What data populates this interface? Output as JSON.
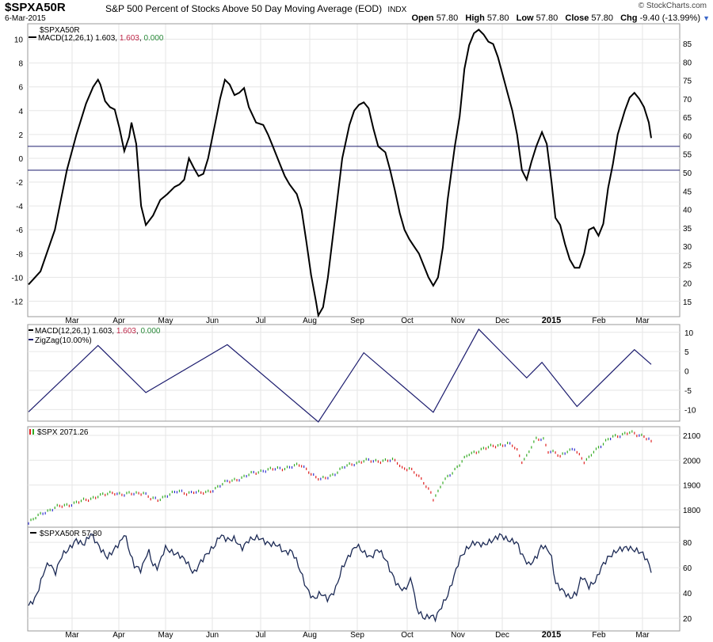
{
  "header": {
    "symbol": "$SPXA50R",
    "name": "S&P 500 Percent of Stocks Above 50 Day Moving Average (EOD)",
    "exchange": "INDX",
    "date": "6-Mar-2015",
    "brand": "© StockCharts.com",
    "open_label": "Open",
    "open": "57.80",
    "high_label": "High",
    "high": "57.80",
    "low_label": "Low",
    "low": "57.80",
    "close_label": "Close",
    "close": "57.80",
    "chg_label": "Chg",
    "chg": "-9.40 (-13.99%)",
    "menu_icon": "dropdown-triangle-icon"
  },
  "x_axis": {
    "labels": [
      "Mar",
      "Apr",
      "May",
      "Jun",
      "Jul",
      "Aug",
      "Sep",
      "Oct",
      "Nov",
      "Dec",
      "2015",
      "Feb",
      "Mar"
    ],
    "bold": [
      "2015"
    ]
  },
  "chart_data": [
    {
      "id": "main",
      "type": "line",
      "legend": [
        "$SPXA50R",
        "MACD(12,26,1) 1.603, 1.603, 0.000"
      ],
      "legend_colors": [
        "#000000",
        "#000000"
      ],
      "macd_values": [
        "1.603",
        "1.603",
        "0.000"
      ],
      "macd_value_colors": [
        "#000000",
        "#c0284a",
        "#2a8a3a"
      ],
      "left_axis": {
        "ticks": [
          10,
          8,
          6,
          4,
          2,
          0,
          -2,
          -4,
          -6,
          -8,
          -10,
          -12
        ],
        "min": -13.3,
        "max": 11.3
      },
      "right_axis": {
        "ticks": [
          85,
          80,
          75,
          70,
          65,
          60,
          55,
          50,
          45,
          40,
          35,
          30,
          25,
          20,
          15
        ]
      },
      "hlines": [
        1,
        -1
      ],
      "hline_color": "#1c1c6e",
      "series_color": "#000000",
      "points": [
        [
          0,
          -10.6
        ],
        [
          0.25,
          -9.5
        ],
        [
          0.55,
          -6
        ],
        [
          0.8,
          -1
        ],
        [
          1,
          2
        ],
        [
          1.2,
          4.6
        ],
        [
          1.35,
          6
        ],
        [
          1.45,
          6.6
        ],
        [
          1.5,
          6.2
        ],
        [
          1.6,
          4.8
        ],
        [
          1.7,
          4.3
        ],
        [
          1.8,
          4.1
        ],
        [
          1.9,
          2.5
        ],
        [
          2,
          0.6
        ],
        [
          2.1,
          1.8
        ],
        [
          2.15,
          3
        ],
        [
          2.25,
          1.2
        ],
        [
          2.35,
          -4
        ],
        [
          2.45,
          -5.6
        ],
        [
          2.6,
          -4.8
        ],
        [
          2.75,
          -3.5
        ],
        [
          2.9,
          -3
        ],
        [
          3.05,
          -2.4
        ],
        [
          3.15,
          -2.2
        ],
        [
          3.25,
          -1.8
        ],
        [
          3.35,
          0
        ],
        [
          3.45,
          -0.8
        ],
        [
          3.55,
          -1.5
        ],
        [
          3.65,
          -1.3
        ],
        [
          3.75,
          0
        ],
        [
          3.9,
          3
        ],
        [
          4,
          5
        ],
        [
          4.1,
          6.6
        ],
        [
          4.2,
          6.2
        ],
        [
          4.3,
          5.3
        ],
        [
          4.4,
          5.5
        ],
        [
          4.5,
          5.9
        ],
        [
          4.6,
          4.3
        ],
        [
          4.75,
          3
        ],
        [
          4.9,
          2.8
        ],
        [
          5,
          2
        ],
        [
          5.1,
          1
        ],
        [
          5.25,
          -0.5
        ],
        [
          5.35,
          -1.5
        ],
        [
          5.45,
          -2.2
        ],
        [
          5.6,
          -3
        ],
        [
          5.7,
          -4.3
        ],
        [
          5.8,
          -7
        ],
        [
          5.9,
          -9.8
        ],
        [
          6,
          -12
        ],
        [
          6.05,
          -13.2
        ],
        [
          6.15,
          -12.5
        ],
        [
          6.25,
          -10
        ],
        [
          6.4,
          -5
        ],
        [
          6.55,
          0
        ],
        [
          6.7,
          2.8
        ],
        [
          6.8,
          4
        ],
        [
          6.9,
          4.5
        ],
        [
          7,
          4.7
        ],
        [
          7.1,
          4.2
        ],
        [
          7.2,
          2.5
        ],
        [
          7.3,
          1
        ],
        [
          7.45,
          0.5
        ],
        [
          7.55,
          -1
        ],
        [
          7.65,
          -2.7
        ],
        [
          7.75,
          -4.6
        ],
        [
          7.85,
          -6
        ],
        [
          7.95,
          -6.8
        ],
        [
          8.05,
          -7.4
        ],
        [
          8.15,
          -8
        ],
        [
          8.25,
          -9
        ],
        [
          8.35,
          -10
        ],
        [
          8.45,
          -10.7
        ],
        [
          8.55,
          -10
        ],
        [
          8.65,
          -7.5
        ],
        [
          8.75,
          -3.5
        ],
        [
          8.9,
          1
        ],
        [
          9,
          3.5
        ],
        [
          9.1,
          7.5
        ],
        [
          9.2,
          9.5
        ],
        [
          9.3,
          10.5
        ],
        [
          9.4,
          10.8
        ],
        [
          9.5,
          10.4
        ],
        [
          9.6,
          9.8
        ],
        [
          9.7,
          9.6
        ],
        [
          9.8,
          8.5
        ],
        [
          9.9,
          7
        ],
        [
          10,
          5.5
        ],
        [
          10.1,
          4
        ],
        [
          10.2,
          2
        ],
        [
          10.3,
          -1
        ],
        [
          10.4,
          -1.8
        ],
        [
          10.5,
          -0.3
        ],
        [
          10.6,
          1
        ],
        [
          10.72,
          2.2
        ],
        [
          10.82,
          1.2
        ],
        [
          10.92,
          -2
        ],
        [
          11,
          -5
        ],
        [
          11.1,
          -5.6
        ],
        [
          11.2,
          -7.2
        ],
        [
          11.3,
          -8.5
        ],
        [
          11.4,
          -9.2
        ],
        [
          11.5,
          -9.2
        ],
        [
          11.6,
          -8
        ],
        [
          11.7,
          -6
        ],
        [
          11.8,
          -5.8
        ],
        [
          11.9,
          -6.5
        ],
        [
          12,
          -5.5
        ],
        [
          12.1,
          -2.5
        ],
        [
          12.2,
          -0.5
        ],
        [
          12.3,
          2
        ],
        [
          12.45,
          4
        ],
        [
          12.55,
          5.1
        ],
        [
          12.65,
          5.5
        ],
        [
          12.75,
          5
        ],
        [
          12.85,
          4.3
        ],
        [
          12.95,
          3
        ],
        [
          13,
          1.7
        ]
      ]
    },
    {
      "id": "macd",
      "type": "line",
      "legend": [
        "MACD(12,26,1) 1.603, 1.603, 0.000",
        "ZigZag(10.00%)"
      ],
      "macd_values": [
        "1.603",
        "1.603",
        "0.000"
      ],
      "macd_value_colors": [
        "#000000",
        "#c0284a",
        "#2a8a3a"
      ],
      "series_color": "#1c1c6e",
      "right_axis": {
        "ticks": [
          10,
          5,
          0,
          -5,
          -10
        ],
        "min": -13,
        "max": 12
      },
      "points": [
        [
          0,
          -10.6
        ],
        [
          1.45,
          6.6
        ],
        [
          2.45,
          -5.6
        ],
        [
          4.15,
          6.8
        ],
        [
          6.05,
          -13.2
        ],
        [
          7,
          4.7
        ],
        [
          8.45,
          -10.7
        ],
        [
          9.4,
          10.8
        ],
        [
          10.4,
          -1.8
        ],
        [
          10.72,
          2.2
        ],
        [
          11.45,
          -9.2
        ],
        [
          12.65,
          5.5
        ],
        [
          13,
          1.7
        ]
      ]
    },
    {
      "id": "spx",
      "type": "bar",
      "legend": [
        "$SPX 2071.26"
      ],
      "right_axis": {
        "ticks": [
          2100,
          2000,
          1900,
          1800
        ],
        "min": 1730,
        "max": 2135
      },
      "colors": {
        "up": "#33aa22",
        "down": "#e02020",
        "flat": "#3030d0"
      },
      "points": [
        [
          0,
          1745
        ],
        [
          0.3,
          1790
        ],
        [
          0.6,
          1810
        ],
        [
          0.9,
          1825
        ],
        [
          1.2,
          1838
        ],
        [
          1.45,
          1858
        ],
        [
          1.6,
          1860
        ],
        [
          1.8,
          1870
        ],
        [
          2,
          1862
        ],
        [
          2.2,
          1864
        ],
        [
          2.4,
          1872
        ],
        [
          2.55,
          1845
        ],
        [
          2.7,
          1838
        ],
        [
          2.9,
          1862
        ],
        [
          3.1,
          1872
        ],
        [
          3.3,
          1868
        ],
        [
          3.45,
          1875
        ],
        [
          3.6,
          1865
        ],
        [
          3.75,
          1872
        ],
        [
          3.9,
          1888
        ],
        [
          4.1,
          1908
        ],
        [
          4.3,
          1922
        ],
        [
          4.5,
          1932
        ],
        [
          4.7,
          1948
        ],
        [
          4.9,
          1960
        ],
        [
          5.1,
          1962
        ],
        [
          5.3,
          1968
        ],
        [
          5.5,
          1975
        ],
        [
          5.7,
          1978
        ],
        [
          5.85,
          1958
        ],
        [
          6,
          1930
        ],
        [
          6.1,
          1920
        ],
        [
          6.2,
          1928
        ],
        [
          6.4,
          1948
        ],
        [
          6.6,
          1972
        ],
        [
          6.8,
          1988
        ],
        [
          7,
          1998
        ],
        [
          7.2,
          1995
        ],
        [
          7.4,
          2000
        ],
        [
          7.6,
          1998
        ],
        [
          7.7,
          1990
        ],
        [
          7.8,
          1970
        ],
        [
          7.95,
          1968
        ],
        [
          8.1,
          1940
        ],
        [
          8.25,
          1912
        ],
        [
          8.4,
          1872
        ],
        [
          8.45,
          1845
        ],
        [
          8.55,
          1868
        ],
        [
          8.65,
          1910
        ],
        [
          8.8,
          1945
        ],
        [
          9,
          1982
        ],
        [
          9.2,
          2025
        ],
        [
          9.4,
          2040
        ],
        [
          9.6,
          2050
        ],
        [
          9.8,
          2062
        ],
        [
          10,
          2065
        ],
        [
          10.1,
          2058
        ],
        [
          10.2,
          2038
        ],
        [
          10.3,
          1998
        ],
        [
          10.4,
          2018
        ],
        [
          10.5,
          2055
        ],
        [
          10.6,
          2082
        ],
        [
          10.75,
          2085
        ],
        [
          10.85,
          2040
        ],
        [
          11,
          2030
        ],
        [
          11.1,
          2010
        ],
        [
          11.25,
          2038
        ],
        [
          11.4,
          2050
        ],
        [
          11.5,
          2018
        ],
        [
          11.6,
          1990
        ],
        [
          11.7,
          2008
        ],
        [
          11.8,
          2040
        ],
        [
          12,
          2065
        ],
        [
          12.2,
          2095
        ],
        [
          12.4,
          2105
        ],
        [
          12.55,
          2110
        ],
        [
          12.7,
          2102
        ],
        [
          12.85,
          2100
        ],
        [
          12.95,
          2085
        ],
        [
          13,
          2071
        ]
      ]
    },
    {
      "id": "spxa50r",
      "type": "line",
      "legend": [
        "$SPXA50R 57.80"
      ],
      "series_color": "#1c2a55",
      "right_axis": {
        "ticks": [
          80,
          60,
          40,
          20
        ],
        "min": 10,
        "max": 92
      },
      "points": [
        [
          0,
          30
        ],
        [
          0.15,
          36
        ],
        [
          0.35,
          60
        ],
        [
          0.45,
          64
        ],
        [
          0.55,
          55
        ],
        [
          0.7,
          70
        ],
        [
          0.85,
          75
        ],
        [
          1,
          82
        ],
        [
          1.15,
          78
        ],
        [
          1.3,
          87
        ],
        [
          1.5,
          75
        ],
        [
          1.65,
          68
        ],
        [
          1.8,
          75
        ],
        [
          1.95,
          82
        ],
        [
          2,
          88
        ],
        [
          2.1,
          74
        ],
        [
          2.2,
          62
        ],
        [
          2.35,
          58
        ],
        [
          2.5,
          74
        ],
        [
          2.6,
          62
        ],
        [
          2.7,
          60
        ],
        [
          2.85,
          76
        ],
        [
          3,
          72
        ],
        [
          3.15,
          70
        ],
        [
          3.3,
          65
        ],
        [
          3.45,
          55
        ],
        [
          3.6,
          65
        ],
        [
          3.75,
          72
        ],
        [
          3.9,
          78
        ],
        [
          4,
          86
        ],
        [
          4.15,
          82
        ],
        [
          4.3,
          83
        ],
        [
          4.45,
          75
        ],
        [
          4.6,
          82
        ],
        [
          4.8,
          84
        ],
        [
          5,
          79
        ],
        [
          5.2,
          78
        ],
        [
          5.35,
          72
        ],
        [
          5.5,
          73
        ],
        [
          5.6,
          65
        ],
        [
          5.7,
          55
        ],
        [
          5.8,
          44
        ],
        [
          5.95,
          35
        ],
        [
          6.1,
          40
        ],
        [
          6.25,
          35
        ],
        [
          6.4,
          42
        ],
        [
          6.55,
          60
        ],
        [
          6.7,
          70
        ],
        [
          6.85,
          78
        ],
        [
          7,
          72
        ],
        [
          7.15,
          68
        ],
        [
          7.3,
          75
        ],
        [
          7.45,
          67
        ],
        [
          7.55,
          58
        ],
        [
          7.7,
          46
        ],
        [
          7.85,
          42
        ],
        [
          8,
          52
        ],
        [
          8.1,
          28
        ],
        [
          8.25,
          20
        ],
        [
          8.4,
          22
        ],
        [
          8.5,
          20
        ],
        [
          8.6,
          28
        ],
        [
          8.75,
          38
        ],
        [
          8.9,
          55
        ],
        [
          9,
          67
        ],
        [
          9.15,
          75
        ],
        [
          9.3,
          80
        ],
        [
          9.5,
          78
        ],
        [
          9.7,
          82
        ],
        [
          9.85,
          86
        ],
        [
          10,
          82
        ],
        [
          10.2,
          80
        ],
        [
          10.3,
          70
        ],
        [
          10.45,
          62
        ],
        [
          10.6,
          68
        ],
        [
          10.72,
          78
        ],
        [
          10.9,
          72
        ],
        [
          11,
          48
        ],
        [
          11.15,
          42
        ],
        [
          11.3,
          36
        ],
        [
          11.45,
          40
        ],
        [
          11.55,
          54
        ],
        [
          11.7,
          45
        ],
        [
          11.85,
          50
        ],
        [
          11.95,
          60
        ],
        [
          12.1,
          68
        ],
        [
          12.3,
          74
        ],
        [
          12.5,
          76
        ],
        [
          12.65,
          74
        ],
        [
          12.8,
          72
        ],
        [
          12.9,
          67
        ],
        [
          13,
          58
        ]
      ]
    }
  ]
}
